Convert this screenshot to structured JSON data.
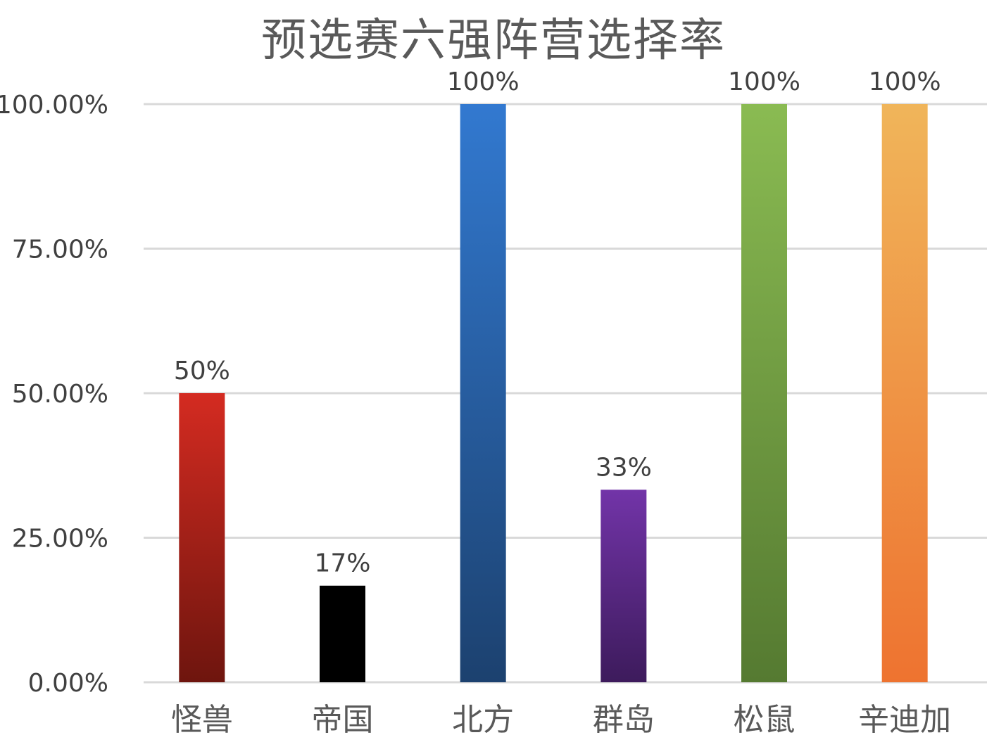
{
  "chart_data": {
    "type": "bar",
    "title": "预选赛六强阵营选择率",
    "xlabel": "",
    "ylabel": "",
    "categories": [
      "怪兽",
      "帝国",
      "北方",
      "群岛",
      "松鼠",
      "辛迪加"
    ],
    "values": [
      50,
      16.7,
      100,
      33.3,
      100,
      100
    ],
    "data_labels": [
      "50%",
      "17%",
      "100%",
      "33%",
      "100%",
      "100%"
    ],
    "ylim": [
      0,
      100
    ],
    "yticks": [
      0,
      25,
      50,
      75,
      100
    ],
    "ytick_labels": [
      "0.00%",
      "25.00%",
      "50.00%",
      "75.00%",
      "100.00%"
    ],
    "grid": true,
    "legend": "none",
    "bar_colors": [
      {
        "top": "#d42b21",
        "bottom": "#6e150e"
      },
      {
        "top": "#000000",
        "bottom": "#000000"
      },
      {
        "top": "#3279d0",
        "bottom": "#1c416f"
      },
      {
        "top": "#7234a8",
        "bottom": "#3d1b5c"
      },
      {
        "top": "#8abb52",
        "bottom": "#557a31"
      },
      {
        "top": "#f0b55a",
        "bottom": "#ee7330"
      }
    ],
    "text_color": "#404040",
    "grid_color": "#d9d9d9"
  }
}
